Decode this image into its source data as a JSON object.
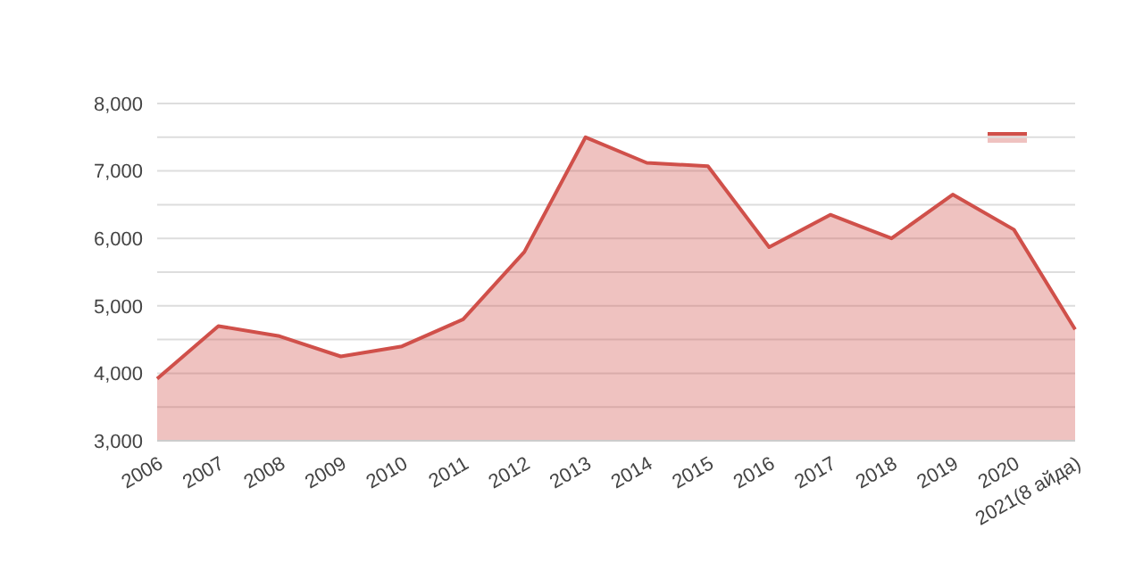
{
  "chart_data": {
    "type": "area",
    "categories": [
      "2006",
      "2007",
      "2008",
      "2009",
      "2010",
      "2011",
      "2012",
      "2013",
      "2014",
      "2015",
      "2016",
      "2017",
      "2018",
      "2019",
      "2020",
      "2021(8 айда)"
    ],
    "series": [
      {
        "color": "#d0504a",
        "values": [
          3920,
          4700,
          4550,
          4250,
          4400,
          4800,
          5800,
          7500,
          7120,
          7070,
          5870,
          6350,
          6000,
          6650,
          6130,
          4650
        ]
      }
    ],
    "ylim": [
      3000,
      8000
    ],
    "yticks": [
      {
        "value": 3000,
        "label": "3,000"
      },
      {
        "value": 3500,
        "label": null
      },
      {
        "value": 4000,
        "label": "4,000"
      },
      {
        "value": 4500,
        "label": null
      },
      {
        "value": 5000,
        "label": "5,000"
      },
      {
        "value": 5500,
        "label": null
      },
      {
        "value": 6000,
        "label": "6,000"
      },
      {
        "value": 6500,
        "label": null
      },
      {
        "value": 7000,
        "label": "7,000"
      },
      {
        "value": 7500,
        "label": null
      },
      {
        "value": 8000,
        "label": "8,000"
      }
    ],
    "grid": "y"
  }
}
